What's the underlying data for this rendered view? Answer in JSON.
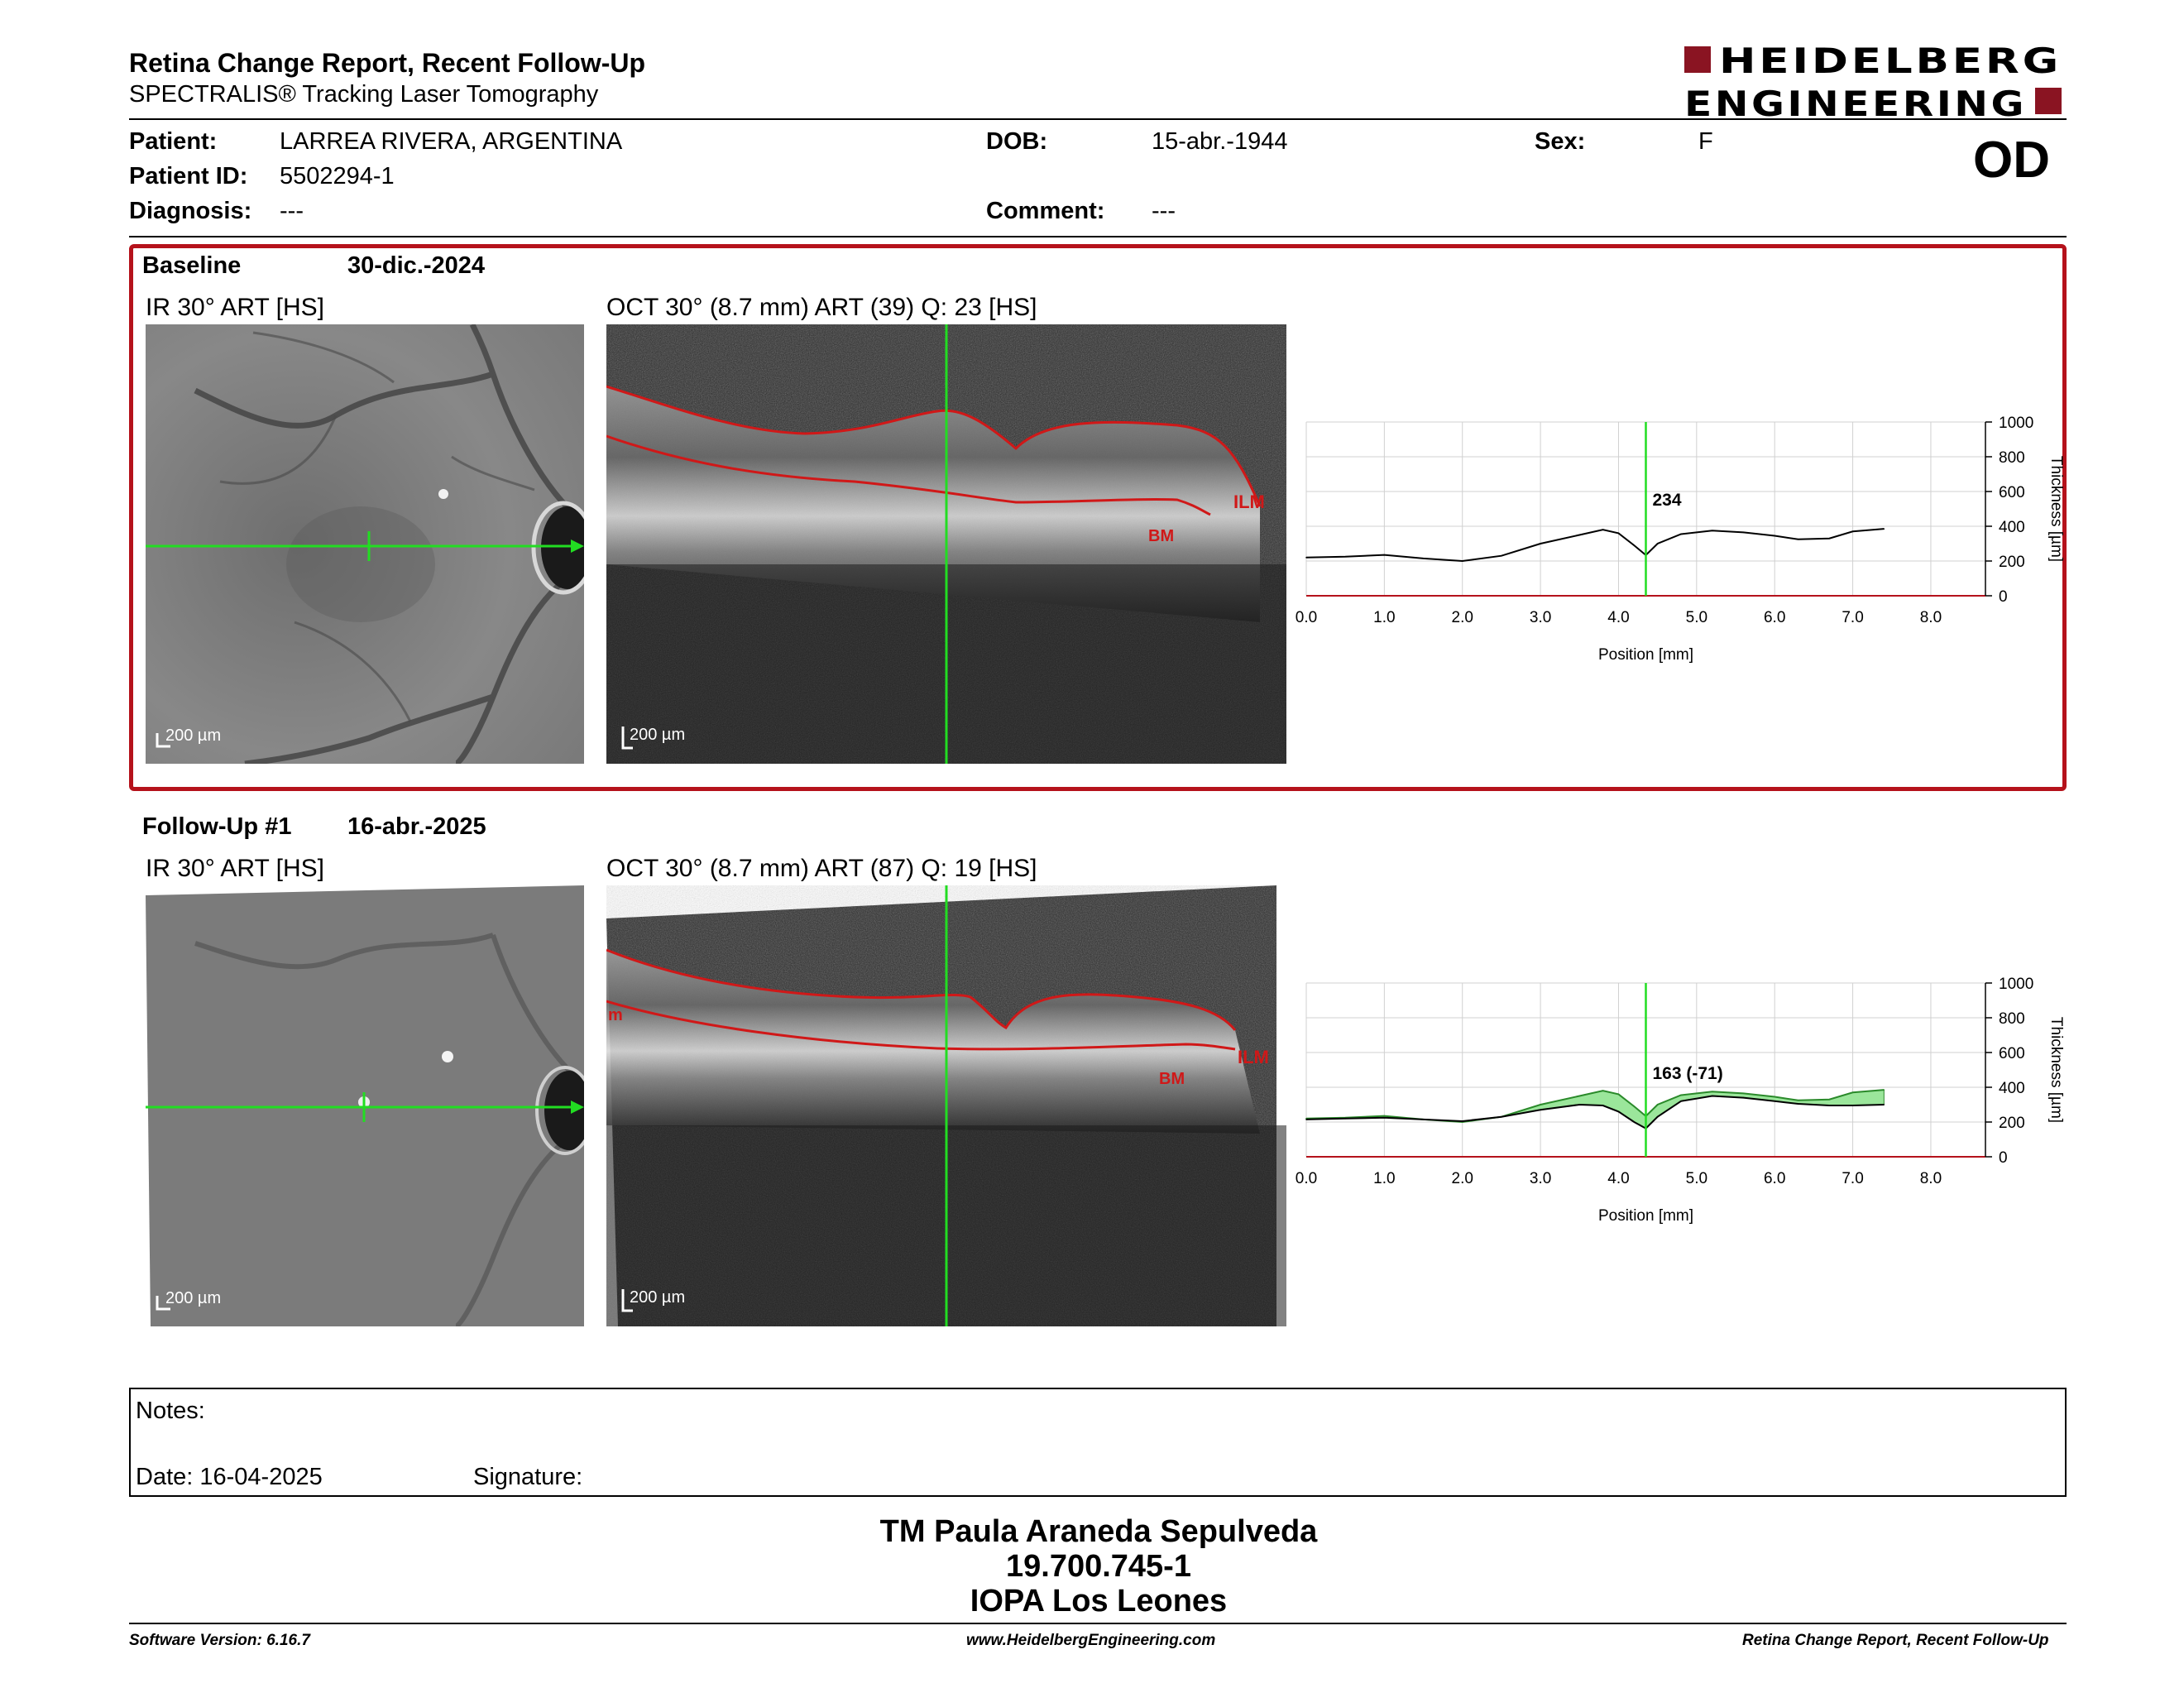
{
  "header": {
    "title": "Retina Change Report, Recent Follow-Up",
    "subtitle": "SPECTRALIS® Tracking Laser Tomography",
    "logo_line1": "HEIDELBERG",
    "logo_line2": "ENGINEERING",
    "eye": "OD"
  },
  "patient": {
    "patient_label": "Patient:",
    "patient_value": "LARREA RIVERA, ARGENTINA",
    "id_label": "Patient ID:",
    "id_value": "5502294-1",
    "diagnosis_label": "Diagnosis:",
    "diagnosis_value": "---",
    "dob_label": "DOB:",
    "dob_value": "15-abr.-1944",
    "comment_label": "Comment:",
    "comment_value": "---",
    "sex_label": "Sex:",
    "sex_value": "F"
  },
  "baseline": {
    "label": "Baseline",
    "date": "30-dic.-2024",
    "ir_title": "IR 30° ART [HS]",
    "oct_title": "OCT 30° (8.7 mm) ART (39) Q: 23 [HS]",
    "ir_scale": "200 µm",
    "oct_scale": "200 µm",
    "ilm": "ILM",
    "bm": "BM"
  },
  "followup": {
    "label": "Follow-Up #1",
    "date": "16-abr.-2025",
    "ir_title": "IR 30° ART [HS]",
    "oct_title": "OCT 30° (8.7 mm) ART (87) Q: 19 [HS]",
    "ir_scale": "200 µm",
    "oct_scale": "200 µm",
    "ilm": "ILM",
    "bm": "BM",
    "edge_label": "m"
  },
  "chart_data": [
    {
      "type": "line",
      "x": [
        0.0,
        0.5,
        1.0,
        1.5,
        2.0,
        2.5,
        3.0,
        3.5,
        3.8,
        4.0,
        4.2,
        4.35,
        4.5,
        4.8,
        5.2,
        5.6,
        6.0,
        6.3,
        6.7,
        7.0,
        7.4
      ],
      "series": [
        {
          "values": [
            220,
            225,
            235,
            215,
            200,
            230,
            300,
            350,
            380,
            360,
            290,
            234,
            300,
            355,
            375,
            365,
            345,
            325,
            330,
            370,
            385
          ]
        }
      ],
      "marker_x": 4.35,
      "marker_label": "234",
      "xlabel": "Position [mm]",
      "ylabel": "Thickness [µm]",
      "xlim": [
        0,
        8.7
      ],
      "ylim": [
        0,
        1000
      ],
      "xticks": [
        "0.0",
        "1.0",
        "2.0",
        "3.0",
        "4.0",
        "5.0",
        "6.0",
        "7.0",
        "8.0"
      ],
      "yticks": [
        "0",
        "200",
        "400",
        "600",
        "800",
        "1000"
      ],
      "grid": true
    },
    {
      "type": "line",
      "x": [
        0.0,
        0.5,
        1.0,
        1.5,
        2.0,
        2.5,
        3.0,
        3.5,
        3.8,
        4.0,
        4.2,
        4.35,
        4.5,
        4.8,
        5.2,
        5.6,
        6.0,
        6.3,
        6.7,
        7.0,
        7.4
      ],
      "series": [
        {
          "values": [
            215,
            220,
            225,
            215,
            205,
            230,
            270,
            300,
            295,
            260,
            200,
            163,
            230,
            320,
            350,
            340,
            320,
            305,
            295,
            295,
            300
          ]
        },
        {
          "values": [
            220,
            225,
            235,
            215,
            200,
            230,
            300,
            350,
            380,
            360,
            290,
            234,
            300,
            355,
            375,
            365,
            345,
            325,
            330,
            370,
            385
          ]
        }
      ],
      "marker_x": 4.35,
      "marker_label": "163 (-71)",
      "xlabel": "Position [mm]",
      "ylabel": "Thickness [µm]",
      "xlim": [
        0,
        8.7
      ],
      "ylim": [
        0,
        1000
      ],
      "xticks": [
        "0.0",
        "1.0",
        "2.0",
        "3.0",
        "4.0",
        "5.0",
        "6.0",
        "7.0",
        "8.0"
      ],
      "yticks": [
        "0",
        "200",
        "400",
        "600",
        "800",
        "1000"
      ],
      "grid": true
    }
  ],
  "notes": {
    "notes_label": "Notes:",
    "date_label": "Date: 16-04-2025",
    "signature_label": "Signature:"
  },
  "signer": {
    "name": "TM Paula Araneda Sepulveda",
    "rut": "19.700.745-1",
    "clinic": "IOPA Los Leones"
  },
  "footer": {
    "software": "Software Version: 6.16.7",
    "website": "www.HeidelbergEngineering.com",
    "report": "Retina Change Report, Recent Follow-Up"
  },
  "colors": {
    "accent_red": "#b5121b",
    "scan_green": "#22dd22",
    "layer_red": "#d01818",
    "change_fill": "#9be69b"
  }
}
